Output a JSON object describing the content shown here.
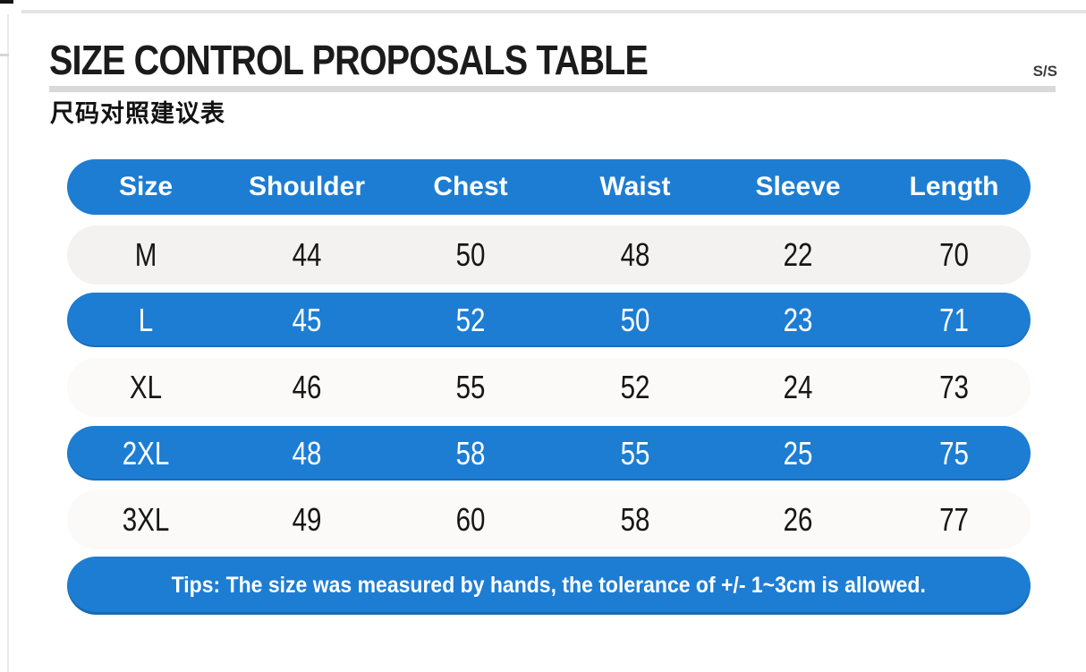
{
  "page": {
    "title": "SIZE CONTROL PROPOSALS TABLE",
    "subtitle_cn": "尺码对照建议表",
    "season_label": "S/S"
  },
  "size_table": {
    "headers": [
      "Size",
      "Shoulder",
      "Chest",
      "Waist",
      "Sleeve",
      "Length"
    ],
    "rows": [
      {
        "size": "M",
        "shoulder": "44",
        "chest": "50",
        "waist": "48",
        "sleeve": "22",
        "length": "70",
        "highlighted": false
      },
      {
        "size": "L",
        "shoulder": "45",
        "chest": "52",
        "waist": "50",
        "sleeve": "23",
        "length": "71",
        "highlighted": true
      },
      {
        "size": "XL",
        "shoulder": "46",
        "chest": "55",
        "waist": "52",
        "sleeve": "24",
        "length": "73",
        "highlighted": false
      },
      {
        "size": "2XL",
        "shoulder": "48",
        "chest": "58",
        "waist": "55",
        "sleeve": "25",
        "length": "75",
        "highlighted": true
      },
      {
        "size": "3XL",
        "shoulder": "49",
        "chest": "60",
        "waist": "58",
        "sleeve": "26",
        "length": "77",
        "highlighted": false
      }
    ],
    "tips": "Tips: The size was measured by hands, the tolerance of +/- 1~3cm is allowed."
  },
  "colors": {
    "accent_blue": "#1d7dd3",
    "row_text": "#161616",
    "light_row": "#f3f2f0",
    "rule_gray": "#d9d9d9"
  }
}
